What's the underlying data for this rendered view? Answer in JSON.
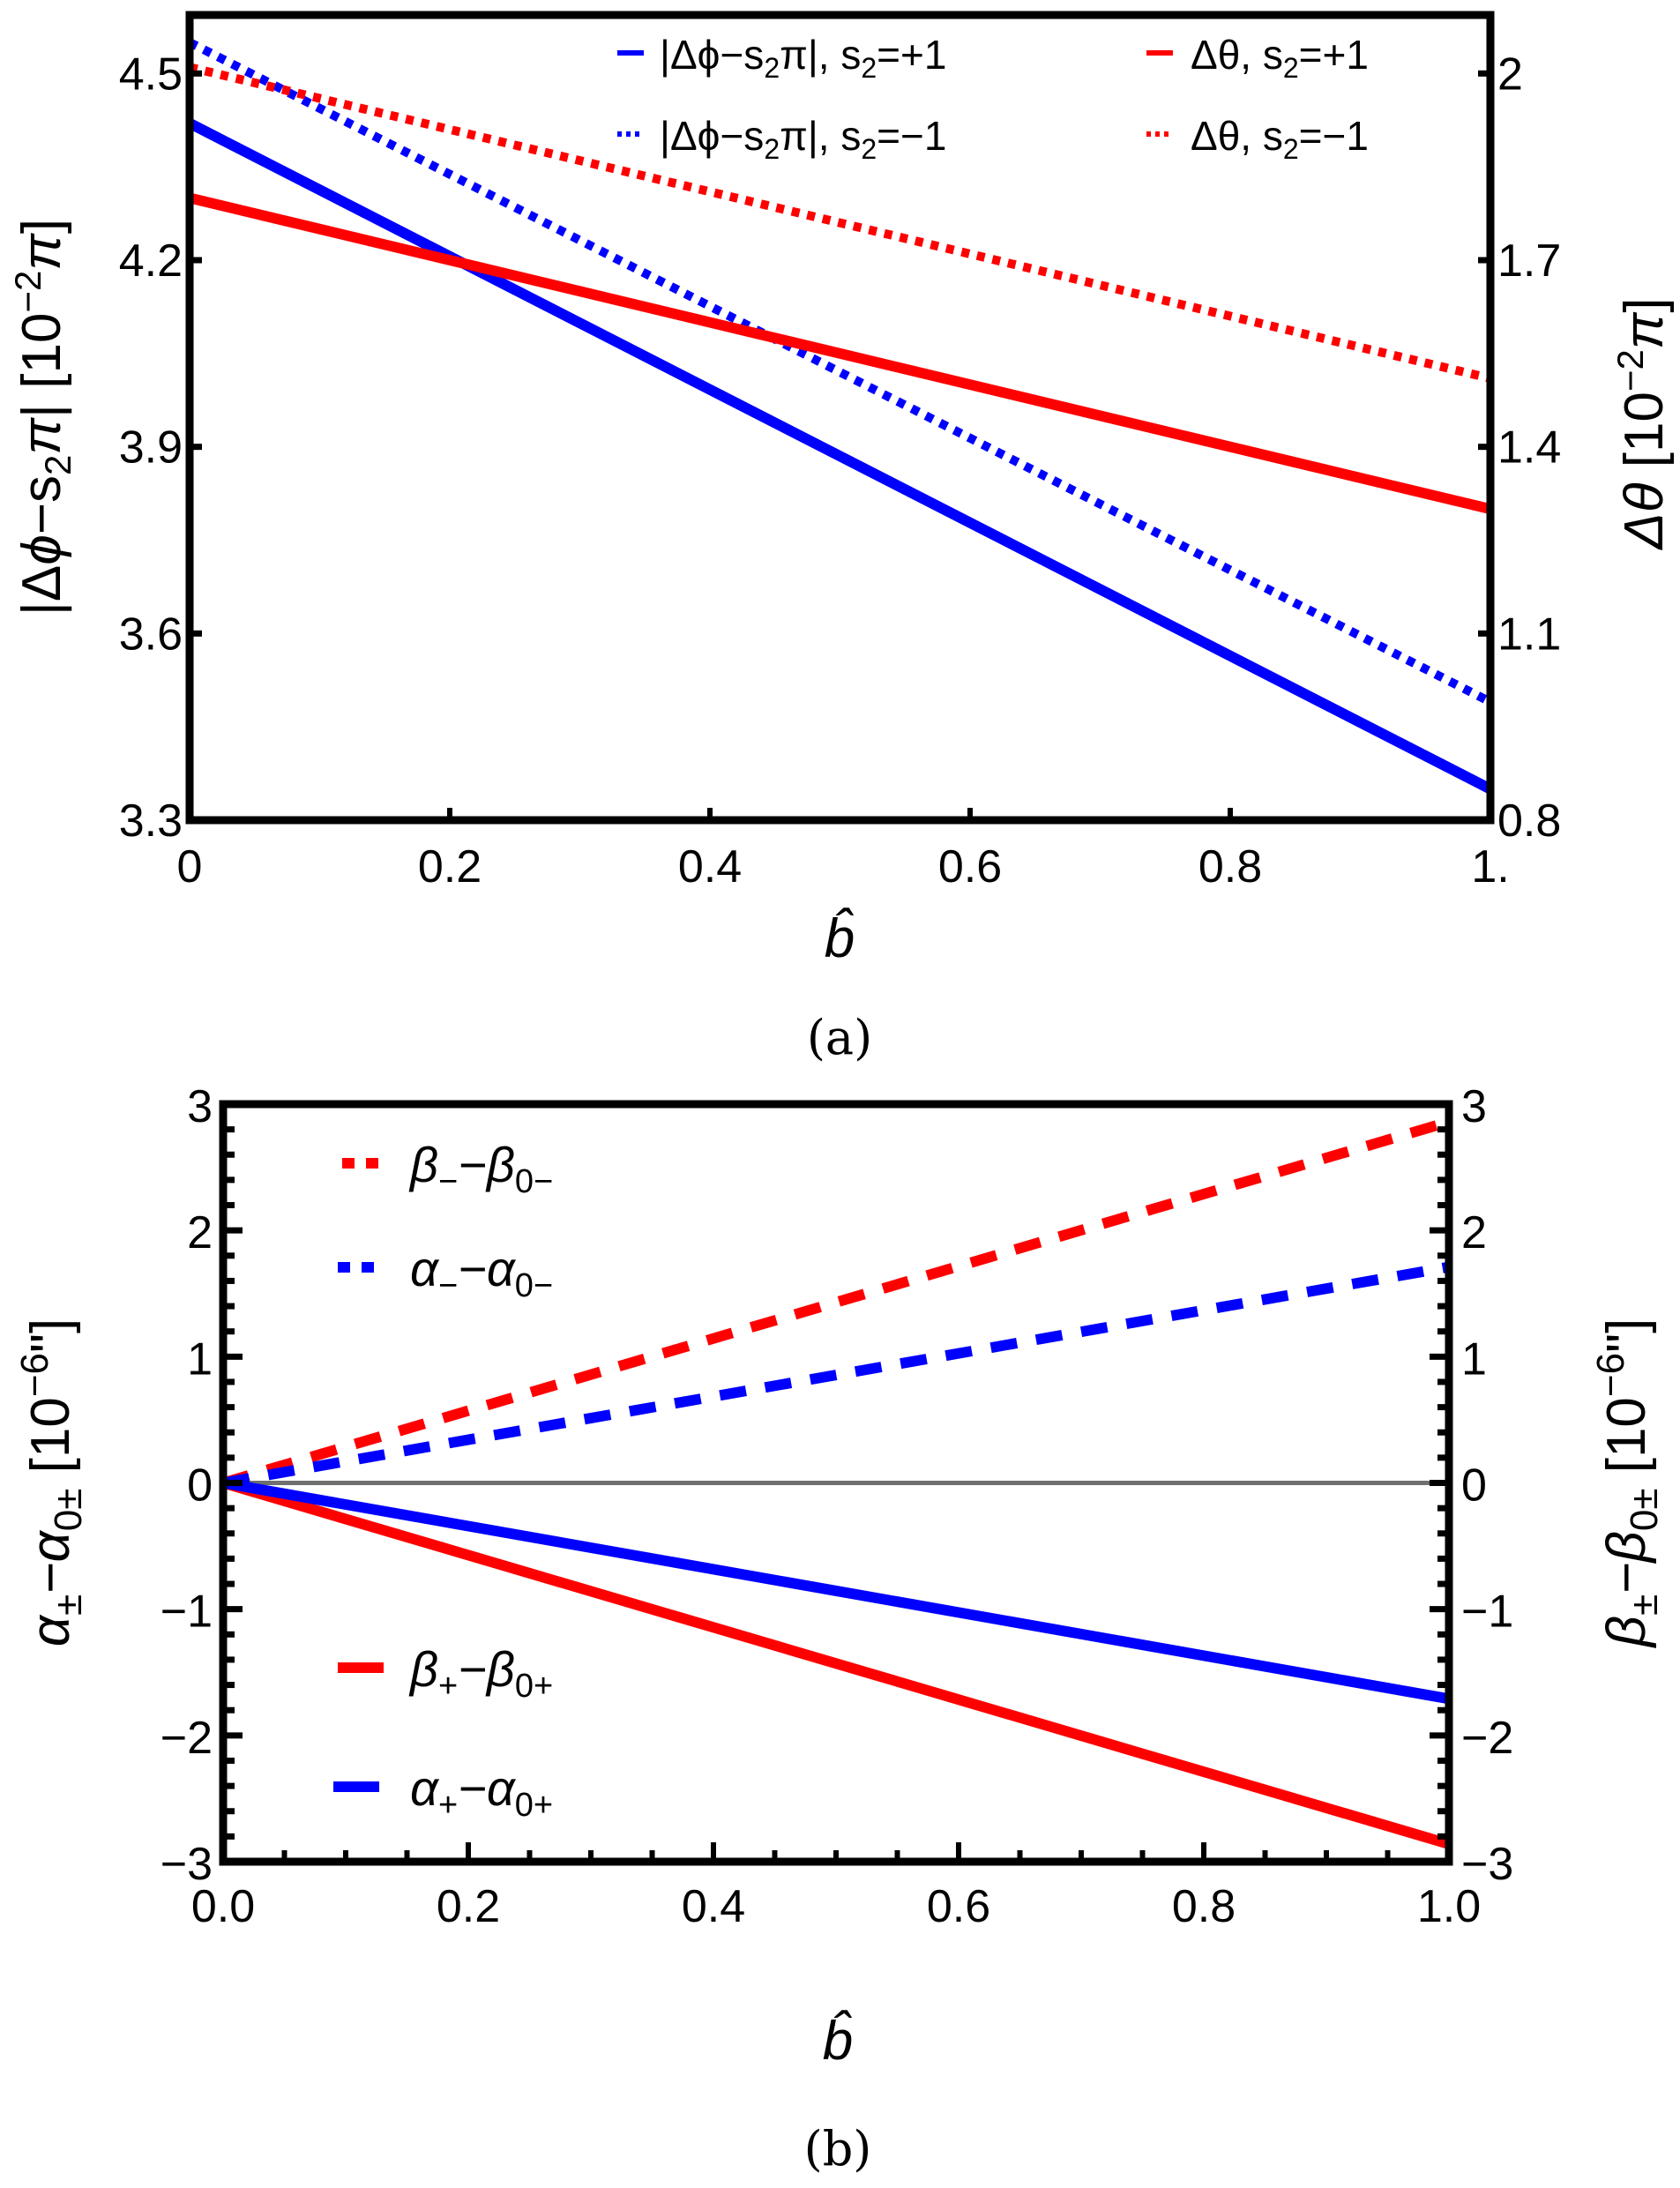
{
  "chart_data": [
    {
      "panel": "(a)",
      "type": "line",
      "caption": "(a)",
      "xlabel": "b̂",
      "xlim": [
        0,
        1
      ],
      "x_ticks": [
        0,
        0.2,
        0.4,
        0.6,
        0.8,
        1
      ],
      "x_tick_labels": [
        "0",
        "0.2",
        "0.4",
        "0.6",
        "0.8",
        "1."
      ],
      "ylabel_left": {
        "pre": "|Δ",
        "phi": "ϕ",
        "mid": "−s",
        "sub": "2",
        "pi": "π",
        "post": "| [10",
        "sup": "−2",
        "unit": "π",
        "close": "]"
      },
      "ylabel_right": {
        "theta": "Δθ",
        "post": " [10",
        "sup": "−2",
        "unit": "π",
        "close": "]"
      },
      "ylim_left": [
        3.3,
        4.594
      ],
      "ylim_right": [
        0.8,
        2.094
      ],
      "y_ticks_left": [
        3.3,
        3.6,
        3.9,
        4.2,
        4.5
      ],
      "y_tick_labels_left": [
        "3.3",
        "3.6",
        "3.9",
        "4.2",
        "4.5"
      ],
      "y_ticks_right": [
        0.8,
        1.1,
        1.4,
        1.7,
        2.0
      ],
      "y_tick_labels_right": [
        "0.8",
        "1.1",
        "1.4",
        "1.7",
        "2"
      ],
      "legend_position": "top-right",
      "series": [
        {
          "name": "|Δϕ−s2π|, s2=+1",
          "label_main": "|Δϕ−s",
          "label_sub": "2",
          "label_end": "π|, s",
          "label_sub2": "2",
          "label_tail": "=+1",
          "axis": "left",
          "color": "#0000ff",
          "style": "solid",
          "x": [
            0,
            1
          ],
          "y": [
            4.42,
            3.35
          ]
        },
        {
          "name": "|Δϕ−s2π|, s2=−1",
          "label_main": "|Δϕ−s",
          "label_sub": "2",
          "label_end": "π|, s",
          "label_sub2": "2",
          "label_tail": "=−1",
          "axis": "left",
          "color": "#0000ff",
          "style": "dotted",
          "x": [
            0,
            1
          ],
          "y": [
            4.55,
            3.49
          ]
        },
        {
          "name": "Δθ, s2=+1",
          "label_main": "Δθ, s",
          "label_sub": "2",
          "label_end": "",
          "label_sub2": "",
          "label_tail": "=+1",
          "axis": "right",
          "color": "#ff0000",
          "style": "solid",
          "x": [
            0,
            1
          ],
          "y": [
            1.8,
            1.3
          ]
        },
        {
          "name": "Δθ, s2=−1",
          "label_main": "Δθ, s",
          "label_sub": "2",
          "label_end": "",
          "label_sub2": "",
          "label_tail": "=−1",
          "axis": "right",
          "color": "#ff0000",
          "style": "dotted",
          "x": [
            0,
            1
          ],
          "y": [
            2.01,
            1.51
          ]
        }
      ]
    },
    {
      "panel": "(b)",
      "type": "line",
      "caption": "(b)",
      "xlabel": "b̂",
      "xlim": [
        0,
        1
      ],
      "x_ticks": [
        0,
        0.2,
        0.4,
        0.6,
        0.8,
        1.0
      ],
      "x_tick_labels": [
        "0.0",
        "0.2",
        "0.4",
        "0.6",
        "0.8",
        "1.0"
      ],
      "ylabel_left": {
        "a": "α",
        "sub1": "±",
        "mid": "−α",
        "sub2": "0±",
        "post": " [10",
        "sup": "−6",
        "unit": "\"",
        "close": "]"
      },
      "ylabel_right": {
        "a": "β",
        "sub1": "±",
        "mid": "−β",
        "sub2": "0±",
        "post": " [10",
        "sup": "−6",
        "unit": "\"",
        "close": "]"
      },
      "ylim": [
        -3,
        3
      ],
      "y_ticks": [
        -3,
        -2,
        -1,
        0,
        1,
        2,
        3
      ],
      "y_tick_labels": [
        "−3",
        "−2",
        "−1",
        "0",
        "1",
        "2",
        "3"
      ],
      "reference_line": {
        "y": 0,
        "color": "#707070"
      },
      "legend_position": "left",
      "series": [
        {
          "name": "β−−β0−",
          "sym": "β",
          "s1": "−",
          "mid": "−β",
          "s2": "0−",
          "color": "#ff0000",
          "style": "dashed",
          "x": [
            0,
            1
          ],
          "y": [
            0,
            2.86
          ]
        },
        {
          "name": "α−−α0−",
          "sym": "α",
          "s1": "−",
          "mid": "−α",
          "s2": "0−",
          "color": "#0000ff",
          "style": "dashed",
          "x": [
            0,
            1
          ],
          "y": [
            0,
            1.71
          ]
        },
        {
          "name": "β+−β0+",
          "sym": "β",
          "s1": "+",
          "mid": "−β",
          "s2": "0+",
          "color": "#ff0000",
          "style": "solid",
          "x": [
            0,
            1
          ],
          "y": [
            0,
            -2.86
          ]
        },
        {
          "name": "α+−α0+",
          "sym": "α",
          "s1": "+",
          "mid": "−α",
          "s2": "0+",
          "color": "#0000ff",
          "style": "solid",
          "x": [
            0,
            1
          ],
          "y": [
            0,
            -1.71
          ]
        }
      ]
    }
  ]
}
